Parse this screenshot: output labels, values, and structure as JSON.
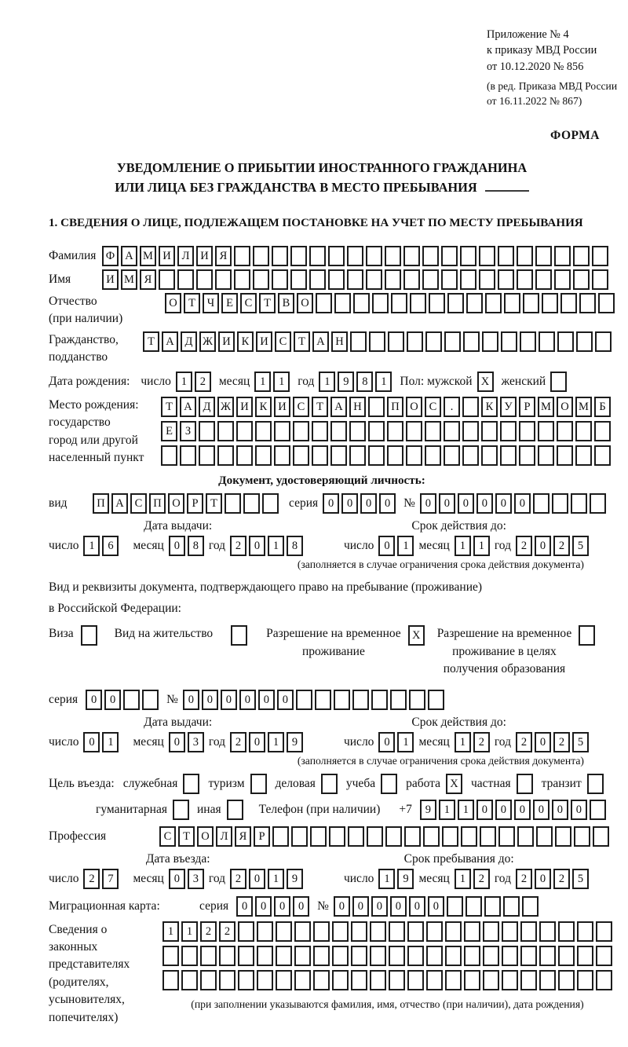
{
  "doc": {
    "header_lines": [
      "Приложение № 4",
      "к приказу МВД России",
      "от 10.12.2020 № 856"
    ],
    "header_sub": [
      "(в ред. Приказа МВД России",
      "от 16.11.2022 № 867)"
    ],
    "form_label": "ФОРМА",
    "title1": "УВЕДОМЛЕНИЕ О ПРИБЫТИИ ИНОСТРАННОГО ГРАЖДАНИНА",
    "title2": "ИЛИ ЛИЦА БЕЗ ГРАЖДАНСТВА В МЕСТО ПРЕБЫВАНИЯ",
    "section1_heading": "1. СВЕДЕНИЯ О ЛИЦЕ, ПОДЛЕЖАЩЕМ ПОСТАНОВКЕ НА УЧЕТ ПО МЕСТУ ПРЕБЫВАНИЯ"
  },
  "labels": {
    "surname": "Фамилия",
    "name": "Имя",
    "patronymic": [
      "Отчество",
      "(при наличии)"
    ],
    "citizenship": [
      "Гражданство,",
      "подданство"
    ],
    "birth_date": "Дата рождения:",
    "day": "число",
    "month": "месяц",
    "year": "год",
    "sex_male": "Пол: мужской",
    "sex_female": "женский",
    "birthplace": [
      "Место рождения:",
      "государство",
      "город или другой",
      "населенный пункт"
    ],
    "identity_heading": "Документ, удостоверяющий личность:",
    "kind": "вид",
    "series": "серия",
    "number": "№",
    "issue_date": "Дата выдачи:",
    "valid_until": "Срок действия до:",
    "limited_note": "(заполняется в случае ограничения срока действия документа)",
    "residence_doc": [
      "Вид и реквизиты документа, подтверждающего право на пребывание (проживание)",
      "в Российской Федерации:"
    ],
    "visa": "Виза",
    "residence_permit": "Вид на жительство",
    "temp_permit": [
      "Разрешение на временное",
      "проживание"
    ],
    "temp_permit_edu": [
      "Разрешение на временное",
      "проживание в целях",
      "получения образования"
    ],
    "purpose": "Цель въезда:",
    "official": "служебная",
    "tourism": "туризм",
    "business": "деловая",
    "study": "учеба",
    "work": "работа",
    "private": "частная",
    "transit": "транзит",
    "humanitarian": "гуманитарная",
    "other": "иная",
    "phone": "Телефон (при наличии)",
    "phone_prefix": "+7",
    "profession": "Профессия",
    "entry_date": "Дата въезда:",
    "stay_until": "Срок пребывания до:",
    "migration_card": "Миграционная карта:",
    "legal_reps": [
      "Сведения о",
      "законных",
      "представителях",
      "(родителях,",
      "усыновителях,",
      "попечителях)"
    ],
    "reps_note": "(при заполнении указываются фамилия, имя, отчество (при наличии), дата рождения)"
  },
  "person": {
    "surname": {
      "v": "ФАМИЛИЯ",
      "n": 27
    },
    "name": {
      "v": "ИМЯ",
      "n": 27
    },
    "patronymic": {
      "v": "ОТЧЕСТВО",
      "n": 24
    },
    "citizenship": {
      "v": "ТАДЖИКИСТАН",
      "n": 25
    },
    "birth_day": {
      "v": "12",
      "n": 2
    },
    "birth_month": {
      "v": "11",
      "n": 2
    },
    "birth_year": {
      "v": "1981",
      "n": 4
    },
    "sex_male": {
      "v": "X",
      "n": 1
    },
    "sex_female": {
      "v": "",
      "n": 1
    },
    "birthplace_row1": {
      "v": "ТАДЖИКИСТАН ПОС. КУРМОМБ",
      "n": 24
    },
    "birthplace_row2": {
      "v": "ЕЗ",
      "n": 24
    },
    "birthplace_row3": {
      "v": "",
      "n": 24
    }
  },
  "identity_doc": {
    "kind": {
      "v": "ПАСПОРТ",
      "n": 10
    },
    "series": {
      "v": "0000",
      "n": 4
    },
    "number": {
      "v": "000000",
      "n": 10
    },
    "issue_day": {
      "v": "16",
      "n": 2
    },
    "issue_month": {
      "v": "08",
      "n": 2
    },
    "issue_year": {
      "v": "2018",
      "n": 4
    },
    "expiry_day": {
      "v": "01",
      "n": 2
    },
    "expiry_month": {
      "v": "11",
      "n": 2
    },
    "expiry_year": {
      "v": "2025",
      "n": 4
    }
  },
  "residence_doc": {
    "visa": {
      "v": "",
      "n": 1
    },
    "residence_permit": {
      "v": "",
      "n": 1
    },
    "temp_residence_permit": {
      "v": "X",
      "n": 1
    },
    "temp_residence_edu": {
      "v": "",
      "n": 1
    },
    "series": {
      "v": "00",
      "n": 4
    },
    "number": {
      "v": "000000",
      "n": 14
    },
    "issue_day": {
      "v": "01",
      "n": 2
    },
    "issue_month": {
      "v": "03",
      "n": 2
    },
    "issue_year": {
      "v": "2019",
      "n": 4
    },
    "expiry_day": {
      "v": "01",
      "n": 2
    },
    "expiry_month": {
      "v": "12",
      "n": 2
    },
    "expiry_year": {
      "v": "2025",
      "n": 4
    }
  },
  "visit": {
    "official": {
      "v": "",
      "n": 1
    },
    "tourism": {
      "v": "",
      "n": 1
    },
    "business": {
      "v": "",
      "n": 1
    },
    "study": {
      "v": "",
      "n": 1
    },
    "work": {
      "v": "X",
      "n": 1
    },
    "private": {
      "v": "",
      "n": 1
    },
    "transit": {
      "v": "",
      "n": 1
    },
    "humanitarian": {
      "v": "",
      "n": 1
    },
    "other": {
      "v": "",
      "n": 1
    },
    "phone": {
      "v": "911000000",
      "n": 10
    },
    "profession": {
      "v": "СТОЛЯР",
      "n": 24
    },
    "entry_day": {
      "v": "27",
      "n": 2
    },
    "entry_month": {
      "v": "03",
      "n": 2
    },
    "entry_year": {
      "v": "2019",
      "n": 4
    },
    "stay_day": {
      "v": "19",
      "n": 2
    },
    "stay_month": {
      "v": "12",
      "n": 2
    },
    "stay_year": {
      "v": "2025",
      "n": 4
    }
  },
  "migration_card": {
    "series": {
      "v": "0000",
      "n": 4
    },
    "number": {
      "v": "000000",
      "n": 11
    }
  },
  "legal_reps": {
    "row1": {
      "v": "1122",
      "n": 24
    },
    "row2": {
      "v": "",
      "n": 24
    },
    "row3": {
      "v": "",
      "n": 24
    }
  }
}
